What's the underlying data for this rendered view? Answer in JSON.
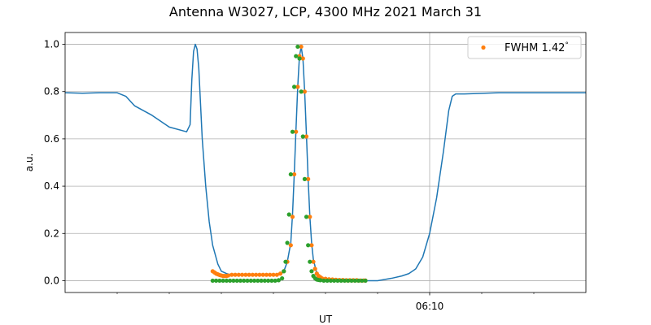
{
  "chart_data": {
    "type": "line",
    "title": "Antenna W3027, LCP, 4300 MHz 2021 March 31",
    "xlabel": "UT",
    "ylabel": "a.u.",
    "xlim": [
      "06:06:30",
      "06:11:30"
    ],
    "ylim": [
      -0.05,
      1.05
    ],
    "x_major_ticks": [
      {
        "value": "06:10:00",
        "label": "06:10"
      }
    ],
    "x_minor_ticks": [
      "06:07:00",
      "06:07:30",
      "06:08:00",
      "06:08:30",
      "06:09:00",
      "06:09:30",
      "06:10:30",
      "06:11:00"
    ],
    "y_ticks": [
      0.0,
      0.2,
      0.4,
      0.6,
      0.8,
      1.0
    ],
    "y_tick_labels": [
      "0.0",
      "0.2",
      "0.4",
      "0.6",
      "0.8",
      "1.0"
    ],
    "grid": true,
    "legend": {
      "placement": "top-right",
      "entries": [
        "FWHM 1.42$^\\circ$"
      ],
      "display": [
        "FWHM 1.42",
        "°"
      ]
    },
    "colors": {
      "line": "#1f77b4",
      "fit": "#ff7f0e",
      "sample": "#2ca02c",
      "grid": "#b0b0b0"
    },
    "series": [
      {
        "style": "line",
        "x": [
          "06:06:30",
          "06:06:40",
          "06:06:50",
          "06:07:00",
          "06:07:05",
          "06:07:10",
          "06:07:20",
          "06:07:30",
          "06:07:40",
          "06:07:42",
          "06:07:43",
          "06:07:44",
          "06:07:45",
          "06:07:46",
          "06:07:47",
          "06:07:48",
          "06:07:49",
          "06:07:51",
          "06:07:53",
          "06:07:55",
          "06:07:58",
          "06:08:00",
          "06:08:03",
          "06:08:06",
          "06:08:09",
          "06:08:12",
          "06:08:15",
          "06:08:18",
          "06:08:22",
          "06:08:26",
          "06:08:30",
          "06:08:34",
          "06:08:36",
          "06:08:38",
          "06:08:40",
          "06:08:41",
          "06:08:42",
          "06:08:43",
          "06:08:44",
          "06:08:45",
          "06:08:46",
          "06:08:47",
          "06:08:48",
          "06:08:49",
          "06:08:50",
          "06:08:51",
          "06:08:52",
          "06:08:53",
          "06:08:55",
          "06:08:58",
          "06:09:02",
          "06:09:08",
          "06:09:15",
          "06:09:22",
          "06:09:30",
          "06:09:38",
          "06:09:44",
          "06:09:48",
          "06:09:52",
          "06:09:56",
          "06:10:00",
          "06:10:04",
          "06:10:08",
          "06:10:11",
          "06:10:13",
          "06:10:15",
          "06:10:20",
          "06:10:40",
          "06:11:00",
          "06:11:20",
          "06:11:30"
        ],
        "y": [
          0.795,
          0.793,
          0.795,
          0.795,
          0.78,
          0.74,
          0.7,
          0.65,
          0.63,
          0.66,
          0.85,
          0.97,
          1.0,
          0.98,
          0.9,
          0.75,
          0.6,
          0.4,
          0.25,
          0.15,
          0.07,
          0.04,
          0.03,
          0.025,
          0.025,
          0.025,
          0.025,
          0.025,
          0.025,
          0.025,
          0.025,
          0.025,
          0.04,
          0.08,
          0.16,
          0.28,
          0.45,
          0.64,
          0.82,
          0.95,
          0.99,
          0.94,
          0.8,
          0.62,
          0.43,
          0.27,
          0.16,
          0.09,
          0.03,
          0.01,
          0.005,
          0.003,
          0.002,
          0.0,
          0.0,
          0.01,
          0.02,
          0.03,
          0.05,
          0.1,
          0.2,
          0.35,
          0.55,
          0.72,
          0.78,
          0.79,
          0.79,
          0.795,
          0.795,
          0.795,
          0.795
        ]
      },
      {
        "style": "points",
        "name": "FWHM 1.42$^\\circ$",
        "x": [
          "06:07:55",
          "06:07:56",
          "06:07:57",
          "06:07:58",
          "06:07:59",
          "06:08:00",
          "06:08:01",
          "06:08:02",
          "06:08:03",
          "06:08:04",
          "06:08:06",
          "06:08:08",
          "06:08:10",
          "06:08:12",
          "06:08:14",
          "06:08:16",
          "06:08:18",
          "06:08:20",
          "06:08:22",
          "06:08:24",
          "06:08:26",
          "06:08:28",
          "06:08:30",
          "06:08:32",
          "06:08:34",
          "06:08:36",
          "06:08:38",
          "06:08:40",
          "06:08:41",
          "06:08:42",
          "06:08:43",
          "06:08:44",
          "06:08:45",
          "06:08:46",
          "06:08:47",
          "06:08:48",
          "06:08:49",
          "06:08:50",
          "06:08:51",
          "06:08:52",
          "06:08:53",
          "06:08:54",
          "06:08:55",
          "06:08:56",
          "06:08:57",
          "06:08:58",
          "06:09:00",
          "06:09:02",
          "06:09:04",
          "06:09:06",
          "06:09:08",
          "06:09:10",
          "06:09:12",
          "06:09:14",
          "06:09:16",
          "06:09:18",
          "06:09:20",
          "06:09:22",
          "06:09:23"
        ],
        "y": [
          0.04,
          0.035,
          0.03,
          0.027,
          0.024,
          0.022,
          0.02,
          0.02,
          0.02,
          0.022,
          0.025,
          0.025,
          0.025,
          0.025,
          0.025,
          0.025,
          0.025,
          0.025,
          0.025,
          0.025,
          0.025,
          0.025,
          0.025,
          0.025,
          0.03,
          0.04,
          0.08,
          0.15,
          0.27,
          0.45,
          0.63,
          0.82,
          0.95,
          0.99,
          0.94,
          0.8,
          0.61,
          0.43,
          0.27,
          0.15,
          0.08,
          0.05,
          0.03,
          0.02,
          0.015,
          0.01,
          0.008,
          0.006,
          0.005,
          0.004,
          0.003,
          0.003,
          0.002,
          0.002,
          0.002,
          0.002,
          0.001,
          0.001,
          0.001
        ]
      },
      {
        "style": "points",
        "x": [
          "06:07:55",
          "06:07:57",
          "06:07:59",
          "06:08:01",
          "06:08:03",
          "06:08:05",
          "06:08:07",
          "06:08:09",
          "06:08:11",
          "06:08:13",
          "06:08:15",
          "06:08:17",
          "06:08:19",
          "06:08:21",
          "06:08:23",
          "06:08:25",
          "06:08:27",
          "06:08:29",
          "06:08:31",
          "06:08:33",
          "06:08:35",
          "06:08:36",
          "06:08:37",
          "06:08:38",
          "06:08:39",
          "06:08:40",
          "06:08:41",
          "06:08:42",
          "06:08:43",
          "06:08:44",
          "06:08:45",
          "06:08:46",
          "06:08:47",
          "06:08:48",
          "06:08:49",
          "06:08:50",
          "06:08:51",
          "06:08:52",
          "06:08:53",
          "06:08:54",
          "06:08:55",
          "06:08:56",
          "06:08:57",
          "06:08:59",
          "06:09:01",
          "06:09:03",
          "06:09:05",
          "06:09:07",
          "06:09:09",
          "06:09:11",
          "06:09:13",
          "06:09:15",
          "06:09:17",
          "06:09:19",
          "06:09:21",
          "06:09:23"
        ],
        "y": [
          0.0,
          0.0,
          0.0,
          0.0,
          0.0,
          0.0,
          0.0,
          0.0,
          0.0,
          0.0,
          0.0,
          0.0,
          0.0,
          0.0,
          0.0,
          0.0,
          0.0,
          0.0,
          0.0,
          0.002,
          0.01,
          0.04,
          0.08,
          0.16,
          0.28,
          0.45,
          0.63,
          0.82,
          0.95,
          0.99,
          0.94,
          0.8,
          0.61,
          0.43,
          0.27,
          0.15,
          0.08,
          0.04,
          0.02,
          0.01,
          0.005,
          0.003,
          0.002,
          0.0,
          0.0,
          0.0,
          0.0,
          0.0,
          0.0,
          0.0,
          0.0,
          0.0,
          0.0,
          0.0,
          0.0,
          0.0
        ]
      }
    ]
  }
}
